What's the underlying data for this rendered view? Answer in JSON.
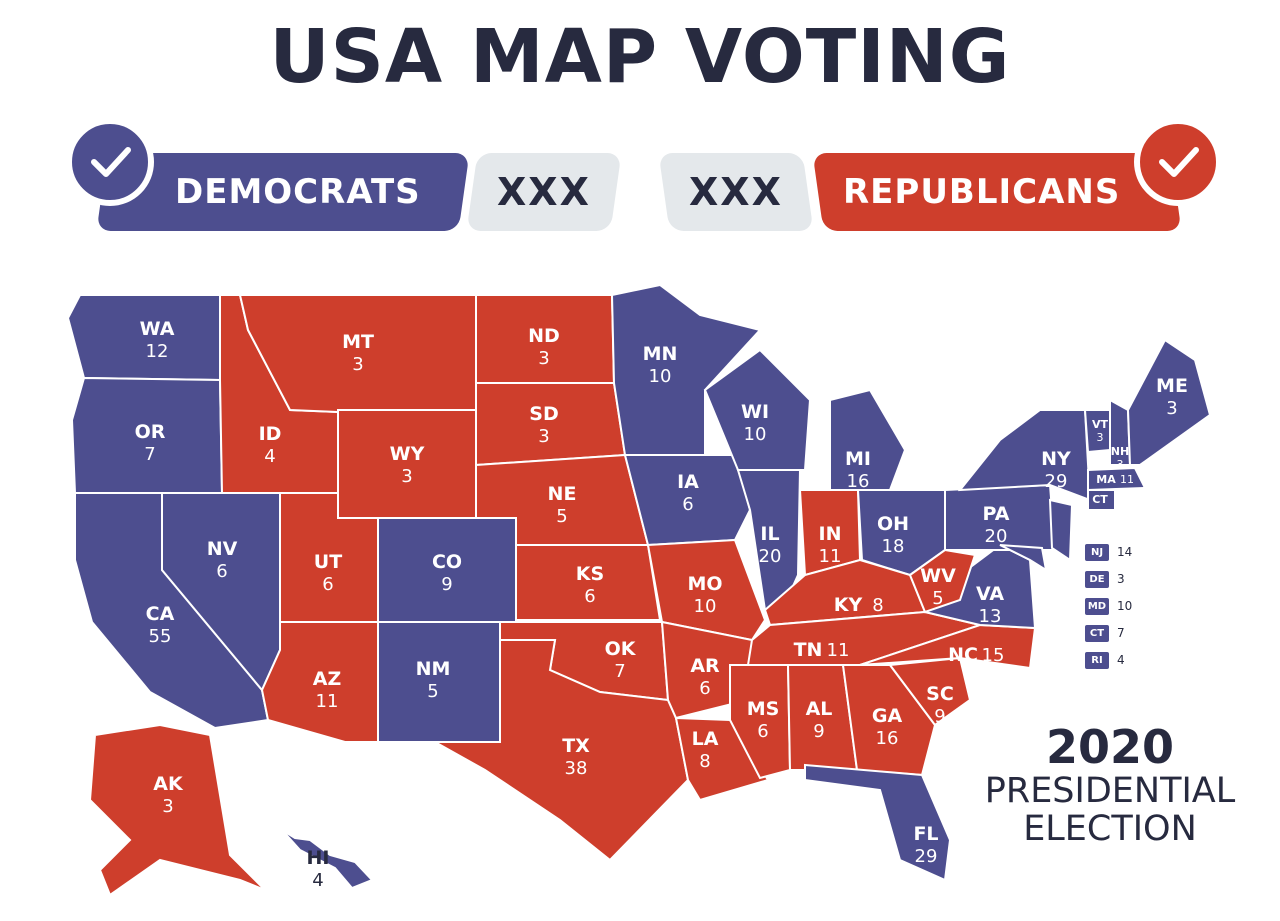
{
  "title": "USA MAP VOTING",
  "colors": {
    "democrat": "#4d4e8f",
    "republican": "#ce3e2c",
    "dark": "#272a3f",
    "gray": "#e4e8eb"
  },
  "banner": {
    "democrats_label": "DEMOCRATS",
    "democrats_count": "XXX",
    "republicans_label": "REPUBLICANS",
    "republicans_count": "XXX",
    "icon": "checkmark-icon"
  },
  "election": {
    "year": "2020",
    "line1": "PRESIDENTIAL",
    "line2": "ELECTION"
  },
  "small_states_legend": [
    {
      "abbr": "NJ",
      "votes": "14"
    },
    {
      "abbr": "DE",
      "votes": "3"
    },
    {
      "abbr": "MD",
      "votes": "10"
    },
    {
      "abbr": "CT",
      "votes": "7"
    },
    {
      "abbr": "RI",
      "votes": "4"
    }
  ],
  "states": [
    {
      "abbr": "WA",
      "votes": "12",
      "party": "D"
    },
    {
      "abbr": "OR",
      "votes": "7",
      "party": "D"
    },
    {
      "abbr": "CA",
      "votes": "55",
      "party": "D"
    },
    {
      "abbr": "NV",
      "votes": "6",
      "party": "D"
    },
    {
      "abbr": "ID",
      "votes": "4",
      "party": "R"
    },
    {
      "abbr": "MT",
      "votes": "3",
      "party": "R"
    },
    {
      "abbr": "WY",
      "votes": "3",
      "party": "R"
    },
    {
      "abbr": "UT",
      "votes": "6",
      "party": "R"
    },
    {
      "abbr": "AZ",
      "votes": "11",
      "party": "R"
    },
    {
      "abbr": "CO",
      "votes": "9",
      "party": "D"
    },
    {
      "abbr": "NM",
      "votes": "5",
      "party": "D"
    },
    {
      "abbr": "ND",
      "votes": "3",
      "party": "R"
    },
    {
      "abbr": "SD",
      "votes": "3",
      "party": "R"
    },
    {
      "abbr": "NE",
      "votes": "5",
      "party": "R"
    },
    {
      "abbr": "KS",
      "votes": "6",
      "party": "R"
    },
    {
      "abbr": "OK",
      "votes": "7",
      "party": "R"
    },
    {
      "abbr": "TX",
      "votes": "38",
      "party": "R"
    },
    {
      "abbr": "MN",
      "votes": "10",
      "party": "D"
    },
    {
      "abbr": "IA",
      "votes": "6",
      "party": "D"
    },
    {
      "abbr": "MO",
      "votes": "10",
      "party": "R"
    },
    {
      "abbr": "AR",
      "votes": "6",
      "party": "R"
    },
    {
      "abbr": "LA",
      "votes": "8",
      "party": "R"
    },
    {
      "abbr": "WI",
      "votes": "10",
      "party": "D"
    },
    {
      "abbr": "IL",
      "votes": "20",
      "party": "D"
    },
    {
      "abbr": "MI",
      "votes": "16",
      "party": "D"
    },
    {
      "abbr": "IN",
      "votes": "11",
      "party": "R"
    },
    {
      "abbr": "OH",
      "votes": "18",
      "party": "D"
    },
    {
      "abbr": "KY",
      "votes": "8",
      "party": "R"
    },
    {
      "abbr": "TN",
      "votes": "11",
      "party": "R"
    },
    {
      "abbr": "MS",
      "votes": "6",
      "party": "R"
    },
    {
      "abbr": "AL",
      "votes": "9",
      "party": "R"
    },
    {
      "abbr": "GA",
      "votes": "16",
      "party": "R"
    },
    {
      "abbr": "FL",
      "votes": "29",
      "party": "D"
    },
    {
      "abbr": "SC",
      "votes": "9",
      "party": "R"
    },
    {
      "abbr": "NC",
      "votes": "15",
      "party": "R"
    },
    {
      "abbr": "VA",
      "votes": "13",
      "party": "D"
    },
    {
      "abbr": "WV",
      "votes": "5",
      "party": "R"
    },
    {
      "abbr": "PA",
      "votes": "20",
      "party": "D"
    },
    {
      "abbr": "NY",
      "votes": "29",
      "party": "D"
    },
    {
      "abbr": "VT",
      "votes": "3",
      "party": "D"
    },
    {
      "abbr": "NH",
      "votes": "3",
      "party": "D"
    },
    {
      "abbr": "ME",
      "votes": "3",
      "party": "D"
    },
    {
      "abbr": "MA",
      "votes": "11",
      "party": "D"
    },
    {
      "abbr": "CT",
      "votes": "",
      "party": "D"
    },
    {
      "abbr": "NJ",
      "votes": "",
      "party": "D"
    },
    {
      "abbr": "MD",
      "votes": "",
      "party": "D"
    },
    {
      "abbr": "AK",
      "votes": "3",
      "party": "R"
    },
    {
      "abbr": "HI",
      "votes": "4",
      "party": "D"
    }
  ]
}
